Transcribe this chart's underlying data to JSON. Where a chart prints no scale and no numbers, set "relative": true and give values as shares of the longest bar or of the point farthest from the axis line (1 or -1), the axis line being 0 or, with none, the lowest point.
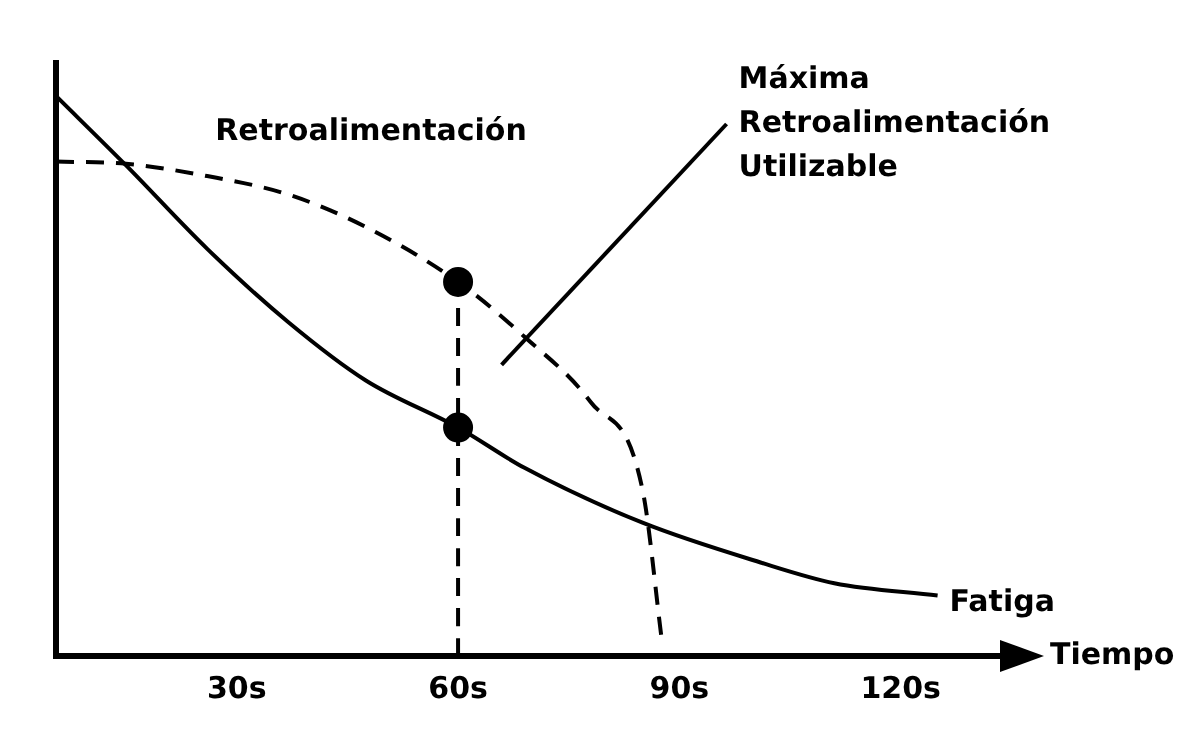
{
  "chart_data": {
    "type": "line",
    "relative": true,
    "xlabel": "Tiempo",
    "xlim": [
      5.5,
      134
    ],
    "xticks": [
      {
        "value": 30,
        "label": "30s"
      },
      {
        "value": 60,
        "label": "60s"
      },
      {
        "value": 90,
        "label": "90s"
      },
      {
        "value": 120,
        "label": "120s"
      }
    ],
    "tick_labels": "x",
    "grid": false,
    "legend": false,
    "marker": "none",
    "series": [
      {
        "name": "Fatiga",
        "color": "#000000",
        "line_style": "solid",
        "x": [
          5.5,
          15,
          26,
          37,
          47.5,
          60,
          69,
          85,
          101,
          111,
          125
        ],
        "values": [
          1,
          0.876,
          0.727,
          0.596,
          0.492,
          0.408,
          0.336,
          0.238,
          0.167,
          0.13,
          0.108
        ]
      },
      {
        "name": "Retroalimentación",
        "color": "#000000",
        "line_style": "dashed",
        "x": [
          5.5,
          15,
          26,
          37,
          47.5,
          60,
          69,
          78,
          85,
          87.6
        ],
        "values": [
          0.883,
          0.879,
          0.857,
          0.824,
          0.766,
          0.668,
          0.57,
          0.453,
          0.297,
          0.03
        ]
      },
      {
        "color": "#000000",
        "line_style": "dashed",
        "x": [
          60,
          60
        ],
        "values": [
          0,
          0.668
        ]
      },
      {
        "type": "scatter",
        "color": "#000000",
        "marker": "circle",
        "x": [
          60,
          60
        ],
        "values": [
          0.408,
          0.668
        ]
      }
    ],
    "annotations": [
      "Máxima\nRetroalimentación\nUtilizable"
    ]
  }
}
